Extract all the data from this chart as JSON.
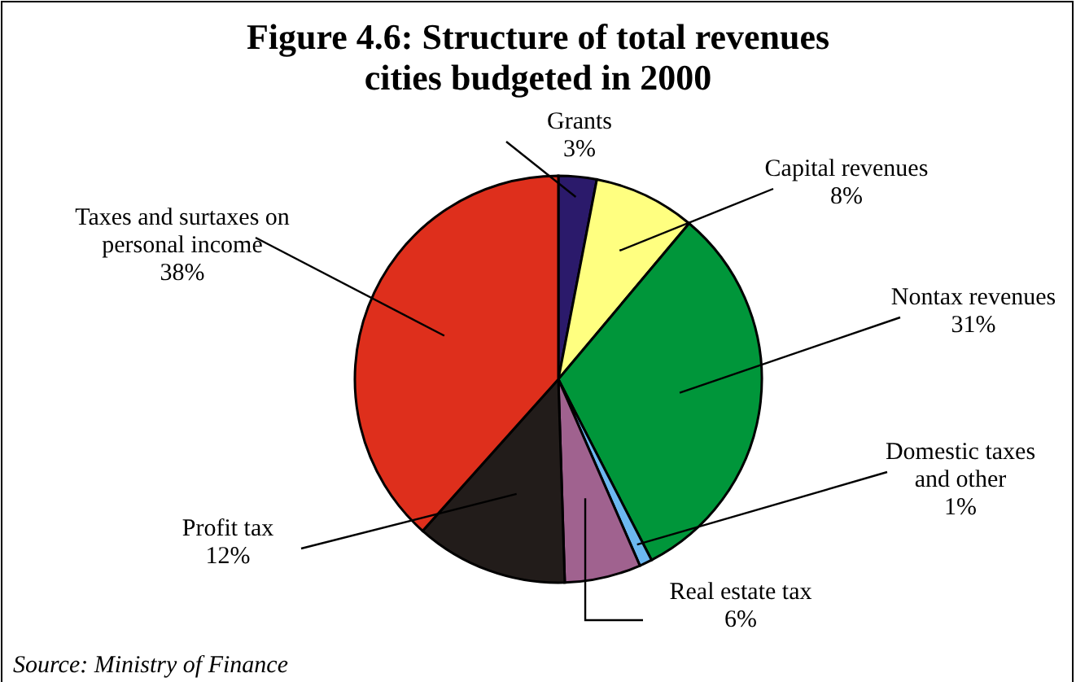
{
  "chart_data": {
    "type": "pie",
    "title": "Figure 4.6: Structure of total revenues cities budgeted in 2000",
    "categories": [
      "Grants",
      "Capital revenues",
      "Nontax revenues",
      "Domestic taxes and other",
      "Real estate tax",
      "Profit tax",
      "Taxes and surtaxes on personal income"
    ],
    "values": [
      3,
      8,
      31,
      1,
      6,
      12,
      38
    ],
    "legend": false,
    "value_labels": [
      "3%",
      "8%",
      "31%",
      "1%",
      "6%",
      "12%",
      "38%"
    ],
    "colors": [
      "#2b1a6b",
      "#ffff80",
      "#00963a",
      "#6cb8f0",
      "#a0628f",
      "#221c1a",
      "#de2f1c"
    ],
    "annotations": [
      "Source: Ministry of Finance"
    ]
  }
}
